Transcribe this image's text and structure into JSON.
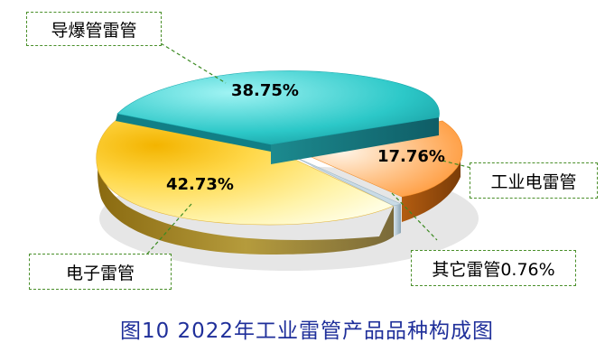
{
  "caption": "图10  2022年工业雷管产品品种构成图",
  "chart_data": {
    "type": "pie",
    "title": "图10  2022年工业雷管产品品种构成图",
    "series": [
      {
        "label": "导爆管雷管",
        "value": 38.75,
        "value_text": "38.75%",
        "color": "#2dc6c6"
      },
      {
        "label": "工业电雷管",
        "value": 17.76,
        "value_text": "17.76%",
        "color": "#ff9a33"
      },
      {
        "label": "其它雷管",
        "value": 0.76,
        "value_text": "0.76%",
        "color": "#a9c8d8"
      },
      {
        "label": "电子雷管",
        "value": 42.73,
        "value_text": "42.73%",
        "color": "#f7d64a"
      }
    ],
    "legend_labels": {
      "detonating_tube": "导爆管雷管",
      "industrial_electric": "工业电雷管",
      "other": "其它雷管0.76%",
      "electronic": "电子雷管"
    },
    "style": "3d-exploded-pie"
  }
}
